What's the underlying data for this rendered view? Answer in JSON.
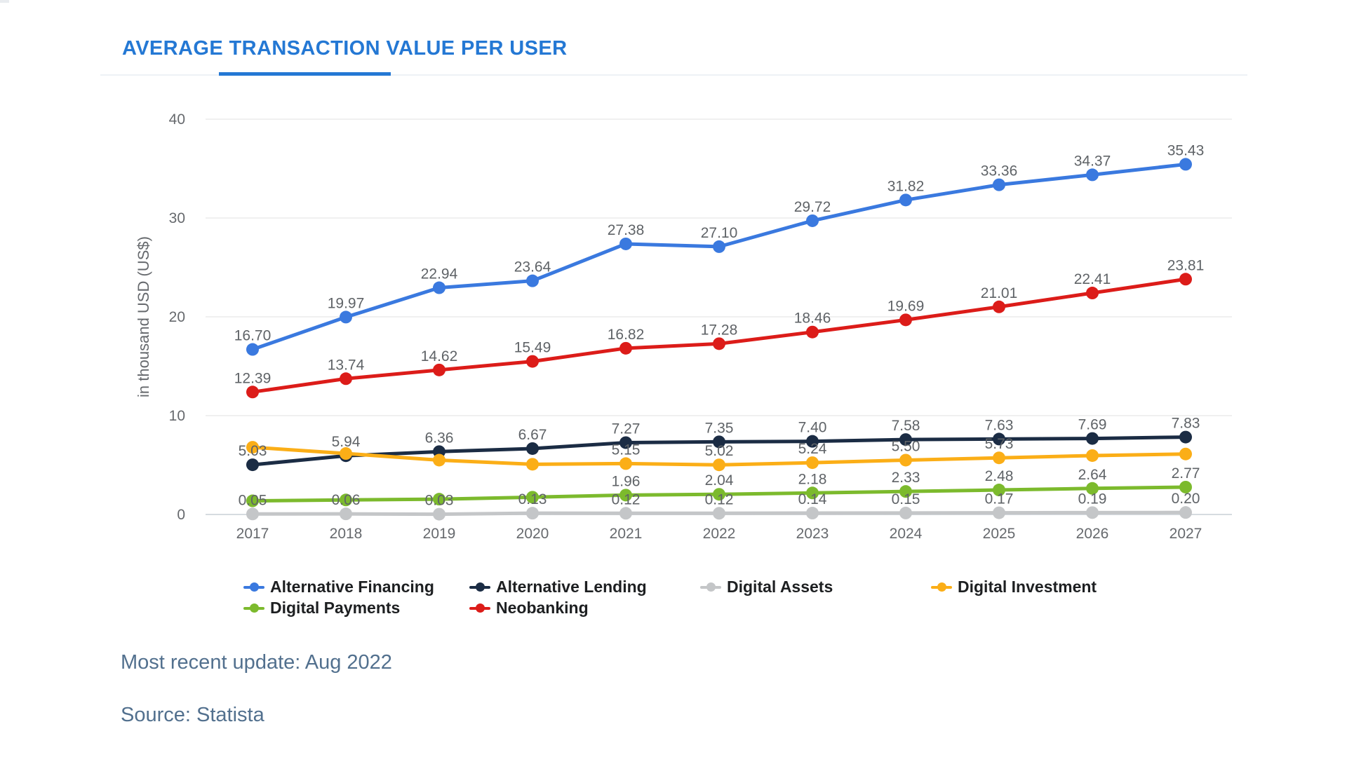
{
  "header": {
    "title": "AVERAGE TRANSACTION VALUE PER USER"
  },
  "footer": {
    "update_note": "Most recent update: Aug 2022",
    "source_note": "Source: Statista"
  },
  "colors": {
    "page_bg": "#ffffff",
    "accent": "#2478d4",
    "divider": "#edf1f6",
    "grid": "#ececec",
    "axis_line": "#d6dbe0",
    "tick_text": "#66696d",
    "value_label": "#5f6367",
    "legend_text": "#1d1f21",
    "footer_text": "#52708e"
  },
  "chart_data": {
    "type": "line",
    "title": "AVERAGE TRANSACTION VALUE PER USER",
    "xlabel": "",
    "ylabel": "in thousand USD (US$)",
    "categories": [
      "2017",
      "2018",
      "2019",
      "2020",
      "2021",
      "2022",
      "2023",
      "2024",
      "2025",
      "2026",
      "2027"
    ],
    "ylim": [
      0,
      40
    ],
    "yticks": [
      0,
      10,
      20,
      30,
      40
    ],
    "grid": true,
    "legend_position": "bottom",
    "series": [
      {
        "name": "Alternative Financing",
        "color": "#3a79df",
        "values": [
          16.7,
          19.97,
          22.94,
          23.64,
          27.38,
          27.1,
          29.72,
          31.82,
          33.36,
          34.37,
          35.43
        ],
        "labels": [
          "16.70",
          "19.97",
          "22.94",
          "23.64",
          "27.38",
          "27.10",
          "29.72",
          "31.82",
          "33.36",
          "34.37",
          "35.43"
        ]
      },
      {
        "name": "Alternative Lending",
        "color": "#1b2c44",
        "values": [
          5.03,
          5.94,
          6.36,
          6.67,
          7.27,
          7.35,
          7.4,
          7.58,
          7.63,
          7.69,
          7.83
        ],
        "labels": [
          "5.03",
          "5.94",
          "6.36",
          "6.67",
          "7.27",
          "7.35",
          "7.40",
          "7.58",
          "7.63",
          "7.69",
          "7.83"
        ]
      },
      {
        "name": "Digital Assets",
        "color": "#c4c6c8",
        "values": [
          0.05,
          0.06,
          0.03,
          0.13,
          0.12,
          0.12,
          0.14,
          0.15,
          0.17,
          0.19,
          0.2
        ],
        "labels": [
          "0.05",
          "0.06",
          "0.03",
          "0.13",
          "0.12",
          "0.12",
          "0.14",
          "0.15",
          "0.17",
          "0.19",
          "0.20"
        ]
      },
      {
        "name": "Digital Investment",
        "color": "#fbae17",
        "values": [
          6.8,
          6.17,
          5.5,
          5.08,
          5.15,
          5.02,
          5.24,
          5.5,
          5.73,
          5.96,
          6.12
        ],
        "labels": [
          "",
          "",
          "",
          "",
          "5.15",
          "5.02",
          "5.24",
          "5.50",
          "5.73",
          "",
          ""
        ]
      },
      {
        "name": "Digital Payments",
        "color": "#7cba2d",
        "values": [
          1.38,
          1.47,
          1.55,
          1.75,
          1.96,
          2.04,
          2.18,
          2.33,
          2.48,
          2.64,
          2.77
        ],
        "labels": [
          "",
          "",
          "",
          "",
          "1.96",
          "2.04",
          "2.18",
          "2.33",
          "2.48",
          "2.64",
          "2.77"
        ]
      },
      {
        "name": "Neobanking",
        "color": "#dc1c19",
        "values": [
          12.39,
          13.74,
          14.62,
          15.49,
          16.82,
          17.28,
          18.46,
          19.69,
          21.01,
          22.41,
          23.81
        ],
        "labels": [
          "12.39",
          "13.74",
          "14.62",
          "15.49",
          "16.82",
          "17.28",
          "18.46",
          "19.69",
          "21.01",
          "22.41",
          "23.81"
        ]
      }
    ]
  }
}
